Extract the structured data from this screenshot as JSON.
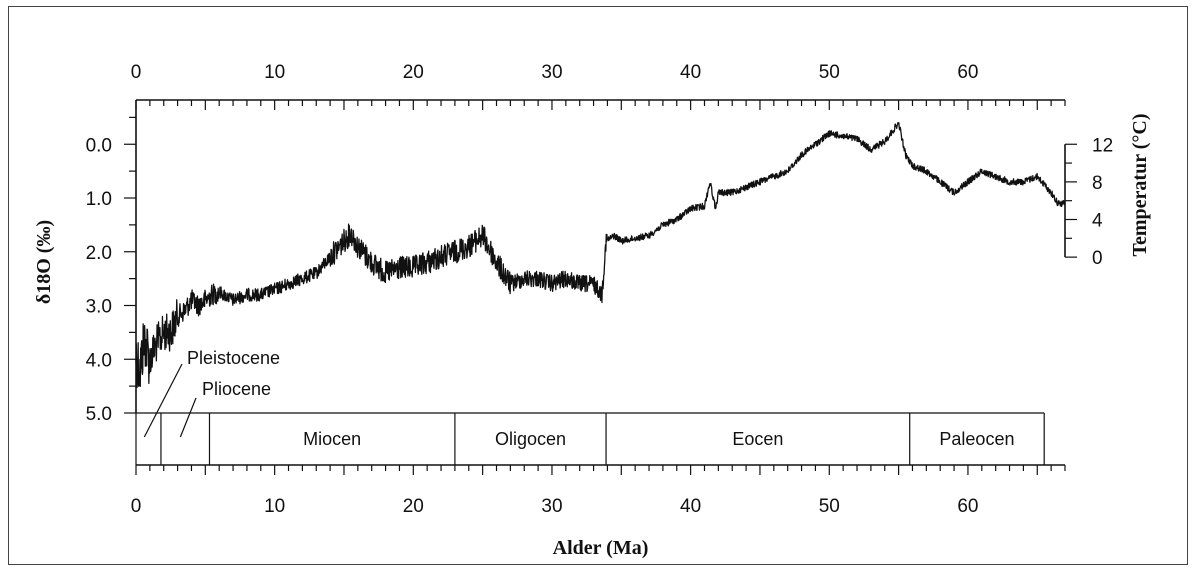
{
  "chart_data": {
    "type": "line",
    "title": "",
    "xlabel": "Alder (Ma)",
    "ylabel": "δ18O (‰)",
    "ylabel_right": "Temperatur (°C)",
    "xlim": [
      0,
      67
    ],
    "ylim": [
      5.0,
      -0.6
    ],
    "y_inverted": true,
    "x_ticks": [
      0,
      10,
      20,
      30,
      40,
      50,
      60
    ],
    "y_ticks": [
      "0.0",
      "1.0",
      "2.0",
      "3.0",
      "4.0",
      "5.0"
    ],
    "y_right_ticks": [
      {
        "label": "12",
        "d18o": 0.0
      },
      {
        "label": "8",
        "d18o": 0.7
      },
      {
        "label": "4",
        "d18o": 1.4
      },
      {
        "label": "0",
        "d18o": 2.1
      }
    ],
    "grid": false,
    "series": [
      {
        "x": [
          0.0,
          0.3,
          0.6,
          1.0,
          1.5,
          2.0,
          2.5,
          3.0,
          3.5,
          4.0,
          4.5,
          5.0,
          5.5,
          6.0,
          7.0,
          8.0,
          9.0,
          10.0,
          11.0,
          12.0,
          13.0,
          14.0,
          15.0,
          15.5,
          16.0,
          17.0,
          18.0,
          19.0,
          20.0,
          21.0,
          22.0,
          23.0,
          24.0,
          25.0,
          26.0,
          27.0,
          28.0,
          29.0,
          30.0,
          31.0,
          32.0,
          33.0,
          33.6,
          33.9,
          34.5,
          35.0,
          36.0,
          37.0,
          38.0,
          39.0,
          40.0,
          41.0,
          41.4,
          41.8,
          42.0,
          43.0,
          44.0,
          45.0,
          46.0,
          47.0,
          48.0,
          49.0,
          50.0,
          51.0,
          52.0,
          53.0,
          54.0,
          55.0,
          55.5,
          56.0,
          57.0,
          58.0,
          59.0,
          60.0,
          61.0,
          62.0,
          63.0,
          64.0,
          65.0,
          66.0,
          66.5,
          67.0
        ],
        "y": [
          3.9,
          4.2,
          3.6,
          4.0,
          3.7,
          3.5,
          3.5,
          3.2,
          3.1,
          2.9,
          3.0,
          2.9,
          2.8,
          2.75,
          2.9,
          2.8,
          2.8,
          2.7,
          2.6,
          2.5,
          2.4,
          2.1,
          1.8,
          1.65,
          1.9,
          2.2,
          2.4,
          2.3,
          2.3,
          2.2,
          2.1,
          2.0,
          1.9,
          1.7,
          2.2,
          2.6,
          2.5,
          2.5,
          2.6,
          2.5,
          2.6,
          2.6,
          2.8,
          1.8,
          1.7,
          1.8,
          1.75,
          1.7,
          1.5,
          1.4,
          1.2,
          1.15,
          0.7,
          1.2,
          0.9,
          0.9,
          0.8,
          0.7,
          0.6,
          0.5,
          0.2,
          0.0,
          -0.2,
          -0.15,
          -0.1,
          0.1,
          -0.05,
          -0.4,
          0.2,
          0.4,
          0.5,
          0.7,
          0.9,
          0.7,
          0.5,
          0.6,
          0.7,
          0.7,
          0.6,
          0.9,
          1.1,
          1.1
        ]
      }
    ],
    "epochs": [
      {
        "name": "",
        "start": 0.0,
        "end": 1.8
      },
      {
        "name": "",
        "start": 1.8,
        "end": 5.3
      },
      {
        "name": "Miocen",
        "start": 5.3,
        "end": 23.0
      },
      {
        "name": "Oligocen",
        "start": 23.0,
        "end": 33.9
      },
      {
        "name": "Eocen",
        "start": 33.9,
        "end": 55.8
      },
      {
        "name": "Paleocen",
        "start": 55.8,
        "end": 65.5
      }
    ],
    "annotations": [
      {
        "text": "Pleistocene",
        "points_to_x": 0.9
      },
      {
        "text": "Pliocene",
        "points_to_x": 3.5
      }
    ]
  }
}
